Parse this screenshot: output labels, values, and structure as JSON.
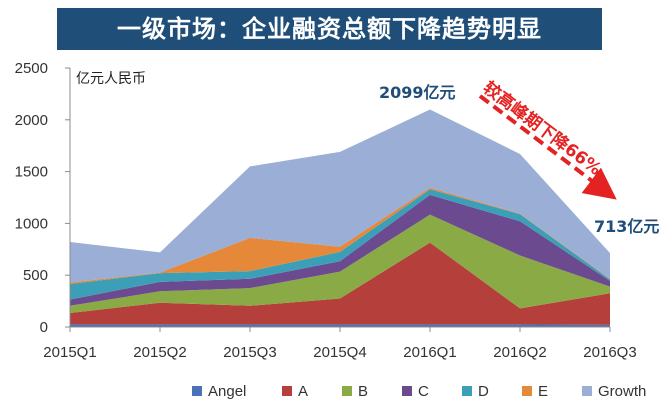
{
  "header": {
    "title": "一级市场：企业融资总额下降趋势明显"
  },
  "chart_data": {
    "type": "area",
    "stacked": true,
    "unit_label": "亿元人民币",
    "categories": [
      "2015Q1",
      "2015Q2",
      "2015Q3",
      "2015Q4",
      "2016Q1",
      "2016Q2",
      "2016Q3"
    ],
    "ylim": [
      0,
      2500
    ],
    "yticks": [
      0,
      500,
      1000,
      1500,
      2000,
      2500
    ],
    "grid": false,
    "legend_position": "bottom",
    "series": [
      {
        "name": "Angel",
        "color": "#4a72b8",
        "values": [
          25,
          25,
          25,
          25,
          25,
          25,
          20
        ]
      },
      {
        "name": "A",
        "color": "#b5403b",
        "values": [
          110,
          210,
          180,
          250,
          790,
          155,
          305
        ]
      },
      {
        "name": "B",
        "color": "#8aaa46",
        "values": [
          70,
          110,
          170,
          260,
          270,
          510,
          65
        ]
      },
      {
        "name": "C",
        "color": "#6b4a8f",
        "values": [
          60,
          90,
          90,
          100,
          190,
          330,
          55
        ]
      },
      {
        "name": "D",
        "color": "#3c9fb8",
        "values": [
          150,
          85,
          75,
          90,
          55,
          70,
          15
        ]
      },
      {
        "name": "E",
        "color": "#e5883a",
        "values": [
          15,
          5,
          320,
          50,
          15,
          5,
          5
        ]
      },
      {
        "name": "Growth",
        "color": "#9aaed6",
        "values": [
          390,
          195,
          690,
          915,
          754,
          575,
          248
        ]
      }
    ],
    "annotations": {
      "peak_label": "2099亿元",
      "latest_label": "713亿元",
      "drop_label": "较高峰期下降66%"
    }
  }
}
